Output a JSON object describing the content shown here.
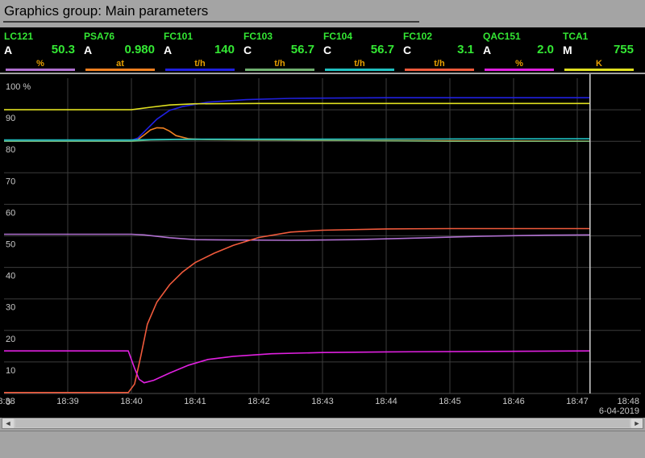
{
  "window": {
    "title": "Graphics group: Main parameters"
  },
  "tiles": [
    {
      "tag": "LC121",
      "mode": "A",
      "value": "50.3",
      "unit": "%",
      "color": "#b070d0"
    },
    {
      "tag": "PSA76",
      "mode": "A",
      "value": "0.980",
      "unit": "at",
      "color": "#f08020"
    },
    {
      "tag": "FC101",
      "mode": "A",
      "value": "140",
      "unit": "t/h",
      "color": "#2020e0"
    },
    {
      "tag": "FC103",
      "mode": "C",
      "value": "56.7",
      "unit": "t/h",
      "color": "#70b070"
    },
    {
      "tag": "FC104",
      "mode": "C",
      "value": "56.7",
      "unit": "t/h",
      "color": "#20c0c0"
    },
    {
      "tag": "FC102",
      "mode": "C",
      "value": "3.1",
      "unit": "t/h",
      "color": "#f05a3c"
    },
    {
      "tag": "QAC151",
      "mode": "A",
      "value": "2.0",
      "unit": "%",
      "color": "#e020e0"
    },
    {
      "tag": "TCA1",
      "mode": "M",
      "value": "755",
      "unit": "K",
      "color": "#e0e020"
    }
  ],
  "chart_data": {
    "type": "line",
    "y_unit": "%",
    "ylim": [
      0,
      100
    ],
    "y_ticks": [
      "100 %",
      "90",
      "80",
      "70",
      "60",
      "50",
      "40",
      "30",
      "20",
      "10",
      "0"
    ],
    "x_ticks": [
      "18:38",
      "18:39",
      "18:40",
      "18:41",
      "18:42",
      "18:43",
      "18:44",
      "18:45",
      "18:46",
      "18:47",
      "18:48"
    ],
    "date": "6-04-2019",
    "cursor_time": "18:47.2",
    "grid": true,
    "series": [
      {
        "name": "LC121",
        "color": "#b070d0",
        "points": [
          [
            0,
            50.5
          ],
          [
            2.0,
            50.5
          ],
          [
            2.2,
            50.3
          ],
          [
            2.6,
            49.4
          ],
          [
            3.0,
            48.8
          ],
          [
            3.5,
            48.7
          ],
          [
            4.5,
            48.6
          ],
          [
            5.5,
            48.8
          ],
          [
            6.5,
            49.3
          ],
          [
            7.5,
            49.9
          ],
          [
            8.5,
            50.2
          ],
          [
            9.2,
            50.3
          ]
        ]
      },
      {
        "name": "PSA76",
        "color": "#f08020",
        "points": [
          [
            0,
            80.2
          ],
          [
            2.0,
            80.2
          ],
          [
            2.1,
            80.5
          ],
          [
            2.2,
            82.0
          ],
          [
            2.3,
            83.6
          ],
          [
            2.4,
            84.3
          ],
          [
            2.5,
            84.2
          ],
          [
            2.6,
            83.2
          ],
          [
            2.7,
            81.8
          ],
          [
            2.9,
            80.8
          ],
          [
            3.2,
            80.5
          ],
          [
            5,
            80.3
          ],
          [
            9.2,
            80.0
          ]
        ]
      },
      {
        "name": "FC101",
        "color": "#2020e0",
        "points": [
          [
            0,
            80.3
          ],
          [
            2.0,
            80.3
          ],
          [
            2.1,
            81.0
          ],
          [
            2.25,
            84.0
          ],
          [
            2.4,
            87.0
          ],
          [
            2.6,
            89.8
          ],
          [
            2.8,
            91.0
          ],
          [
            3.2,
            92.4
          ],
          [
            3.8,
            93.2
          ],
          [
            4.5,
            93.6
          ],
          [
            6,
            93.8
          ],
          [
            9.2,
            93.8
          ]
        ]
      },
      {
        "name": "FC103",
        "color": "#70b070",
        "points": [
          [
            0,
            80.0
          ],
          [
            2.0,
            80.0
          ],
          [
            2.3,
            80.4
          ],
          [
            2.8,
            80.6
          ],
          [
            5,
            80.3
          ],
          [
            7,
            80.0
          ],
          [
            9.2,
            80.0
          ]
        ]
      },
      {
        "name": "FC104",
        "color": "#20c0c0",
        "points": [
          [
            0,
            80.4
          ],
          [
            2.0,
            80.4
          ],
          [
            2.4,
            80.6
          ],
          [
            3.0,
            80.7
          ],
          [
            5,
            80.7
          ],
          [
            9.2,
            80.8
          ]
        ]
      },
      {
        "name": "FC102",
        "color": "#f05a3c",
        "points": [
          [
            0,
            0.3
          ],
          [
            1.95,
            0.3
          ],
          [
            2.05,
            3.0
          ],
          [
            2.15,
            12.0
          ],
          [
            2.25,
            22.0
          ],
          [
            2.4,
            29.0
          ],
          [
            2.6,
            34.5
          ],
          [
            2.8,
            38.5
          ],
          [
            3.0,
            41.5
          ],
          [
            3.3,
            44.5
          ],
          [
            3.6,
            47.0
          ],
          [
            4.0,
            49.5
          ],
          [
            4.5,
            51.2
          ],
          [
            5.0,
            51.8
          ],
          [
            6.0,
            52.2
          ],
          [
            7.0,
            52.3
          ],
          [
            9.2,
            52.3
          ]
        ]
      },
      {
        "name": "QAC151",
        "color": "#e020e0",
        "points": [
          [
            0,
            13.5
          ],
          [
            1.95,
            13.5
          ],
          [
            2.05,
            8.0
          ],
          [
            2.12,
            4.5
          ],
          [
            2.2,
            3.4
          ],
          [
            2.35,
            4.2
          ],
          [
            2.6,
            6.5
          ],
          [
            2.9,
            9.0
          ],
          [
            3.2,
            10.8
          ],
          [
            3.6,
            11.8
          ],
          [
            4.2,
            12.6
          ],
          [
            5,
            13.0
          ],
          [
            6,
            13.2
          ],
          [
            9.2,
            13.5
          ]
        ]
      },
      {
        "name": "TCA1",
        "color": "#e0e020",
        "points": [
          [
            0,
            90.0
          ],
          [
            2.0,
            90.0
          ],
          [
            2.3,
            90.8
          ],
          [
            2.6,
            91.5
          ],
          [
            3.0,
            91.9
          ],
          [
            4,
            92.0
          ],
          [
            9.2,
            92.0
          ]
        ]
      }
    ]
  }
}
